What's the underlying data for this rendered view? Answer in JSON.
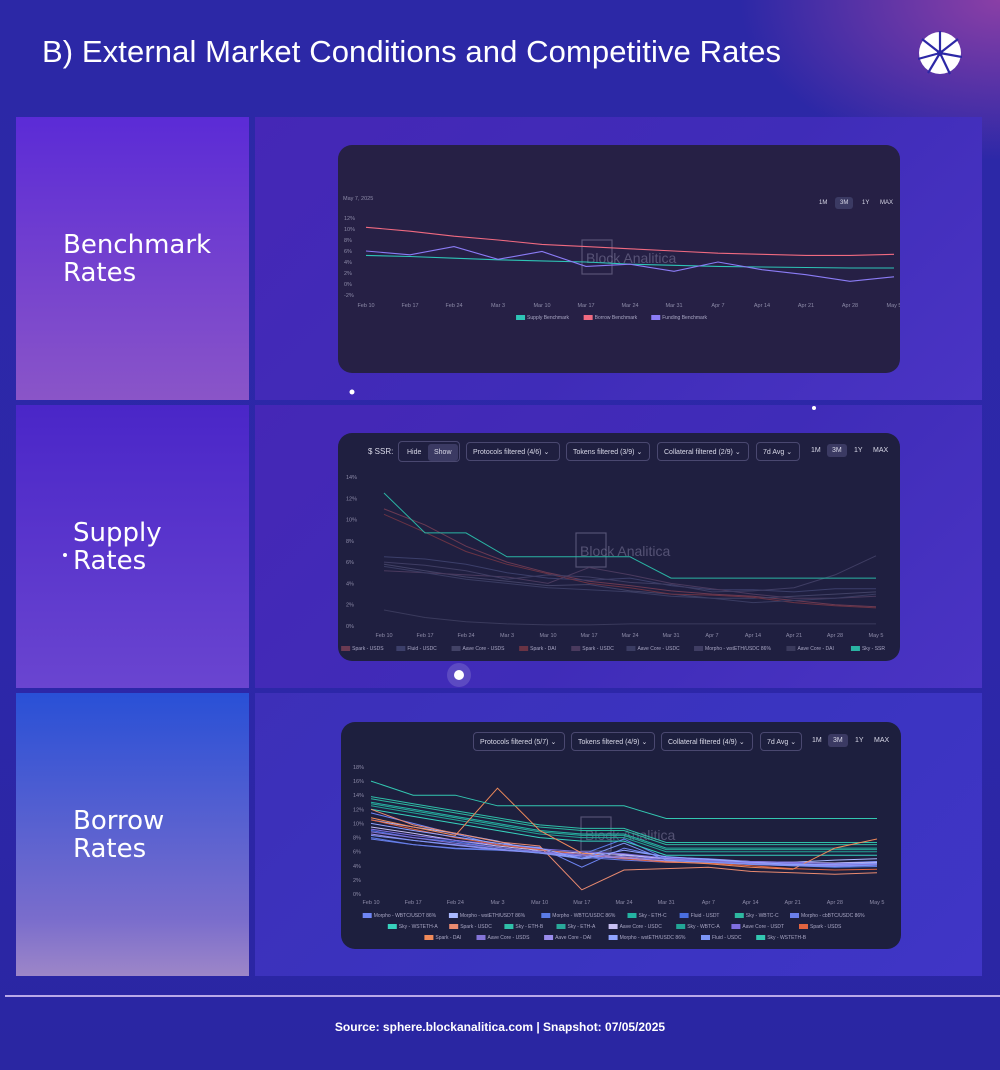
{
  "page": {
    "title": "B) External Market Conditions and Competitive Rates",
    "footer": "Source: sphere.blockanalitica.com | Snapshot: 07/05/2025",
    "watermark": "Block Analitica",
    "accent_colors": {
      "background": "#2c28a6",
      "card": "#262045"
    }
  },
  "sections": {
    "benchmark": {
      "label_line1": "Benchmark",
      "label_line2": "Rates"
    },
    "supply": {
      "label_line1": "Supply",
      "label_line2": "Rates"
    },
    "borrow": {
      "label_line1": "Borrow",
      "label_line2": "Rates"
    }
  },
  "controls": {
    "range_buttons": [
      "1M",
      "3M",
      "1Y",
      "MAX"
    ],
    "selected_range": "3M",
    "ssr_label": "$ SSR:",
    "hide": "Hide",
    "show": "Show",
    "supply_protocols": "Protocols filtered (4/6)",
    "supply_tokens": "Tokens filtered (3/9)",
    "supply_collateral": "Collateral filtered (2/9)",
    "supply_avg": "7d Avg",
    "borrow_protocols": "Protocols filtered (5/7)",
    "borrow_tokens": "Tokens filtered (4/9)",
    "borrow_collateral": "Collateral filtered (4/9)",
    "borrow_avg": "7d Avg"
  },
  "chart_data": [
    {
      "type": "line",
      "id": "benchmark",
      "date_label": "May 7, 2025",
      "x_ticks": [
        "Feb 10",
        "Feb 17",
        "Feb 24",
        "Mar 3",
        "Mar 10",
        "Mar 17",
        "Mar 24",
        "Mar 31",
        "Apr 7",
        "Apr 14",
        "Apr 21",
        "Apr 28",
        "May 5"
      ],
      "y_ticks": [
        "12%",
        "10%",
        "8%",
        "6%",
        "4%",
        "2%",
        "0%",
        "-2%"
      ],
      "ylim": [
        -2,
        12
      ],
      "series": [
        {
          "name": "Supply Benchmark",
          "color": "#2ec4b6",
          "values": [
            5.2,
            5.0,
            4.7,
            4.4,
            4.2,
            4.0,
            3.6,
            3.4,
            3.2,
            3.1,
            3.0,
            2.9,
            2.9
          ]
        },
        {
          "name": "Borrow Benchmark",
          "color": "#f06a80",
          "values": [
            10.3,
            9.6,
            8.7,
            8.0,
            7.2,
            6.8,
            6.4,
            6.0,
            5.6,
            5.4,
            5.2,
            5.2,
            5.4
          ]
        },
        {
          "name": "Funding Benchmark",
          "color": "#8b7cf6",
          "values": [
            6.0,
            5.3,
            6.8,
            4.5,
            5.9,
            3.2,
            3.6,
            2.3,
            4.0,
            2.6,
            1.7,
            0.5,
            1.3
          ]
        }
      ]
    },
    {
      "type": "line",
      "id": "supply",
      "x_ticks": [
        "Feb 10",
        "Feb 17",
        "Feb 24",
        "Mar 3",
        "Mar 10",
        "Mar 17",
        "Mar 24",
        "Mar 31",
        "Apr 7",
        "Apr 14",
        "Apr 21",
        "Apr 28",
        "May 5"
      ],
      "y_ticks": [
        "14%",
        "12%",
        "10%",
        "8%",
        "6%",
        "4%",
        "2%",
        "0%"
      ],
      "ylim": [
        0,
        14
      ],
      "series": [
        {
          "name": "Spark - USDS",
          "color": "#6b3a52",
          "values": [
            11.0,
            9.5,
            7.5,
            6.0,
            5.0,
            4.2,
            3.8,
            3.3,
            3.0,
            2.8,
            2.4,
            2.0,
            1.8
          ]
        },
        {
          "name": "Fluid - USDC",
          "color": "#3c3f6a",
          "values": [
            6.5,
            6.3,
            5.8,
            5.0,
            4.5,
            4.3,
            4.5,
            3.8,
            3.4,
            3.4,
            3.2,
            3.5,
            3.5
          ]
        },
        {
          "name": "Aave Core - USDS",
          "color": "#424266",
          "values": [
            5.8,
            5.2,
            4.6,
            4.2,
            3.8,
            3.9,
            3.3,
            3.0,
            2.6,
            2.6,
            2.8,
            3.0,
            3.2
          ]
        },
        {
          "name": "Spark - DAI",
          "color": "#6a3344",
          "values": [
            10.5,
            8.8,
            7.0,
            5.8,
            4.9,
            4.0,
            3.6,
            3.0,
            2.9,
            2.7,
            2.2,
            1.9,
            1.7
          ]
        },
        {
          "name": "Spark - USDC",
          "color": "#4a3a5e",
          "values": [
            5.2,
            5.0,
            4.8,
            4.6,
            4.0,
            5.5,
            4.8,
            4.0,
            3.5,
            3.0,
            2.6,
            2.6,
            2.8
          ]
        },
        {
          "name": "Aave Core - USDC",
          "color": "#3a3c62",
          "values": [
            5.6,
            5.0,
            4.4,
            4.0,
            3.6,
            3.4,
            3.2,
            2.8,
            2.6,
            2.2,
            2.4,
            2.6,
            3.0
          ]
        },
        {
          "name": "Morpho - wstETH/USDC 86%",
          "color": "#3f3d63",
          "values": [
            6.0,
            5.7,
            5.2,
            4.4,
            4.8,
            4.6,
            4.1,
            3.9,
            3.2,
            3.3,
            3.6,
            4.8,
            6.6
          ]
        },
        {
          "name": "Aave Core - DAI",
          "color": "#3a3a5c",
          "values": [
            1.5,
            0.8,
            0.4,
            0.2,
            0.1,
            0.1,
            0.2,
            0.2,
            0.2,
            0.2,
            0.2,
            0.2,
            0.2
          ]
        },
        {
          "name": "Sky - SSR",
          "color": "#2ab3a3",
          "values": [
            12.5,
            8.75,
            8.75,
            6.5,
            6.5,
            6.5,
            6.5,
            4.5,
            4.5,
            4.5,
            4.5,
            4.5,
            4.5
          ]
        }
      ]
    },
    {
      "type": "line",
      "id": "borrow",
      "x_ticks": [
        "Feb 10",
        "Feb 17",
        "Feb 24",
        "Mar 3",
        "Mar 10",
        "Mar 17",
        "Mar 24",
        "Mar 31",
        "Apr 7",
        "Apr 14",
        "Apr 21",
        "Apr 28",
        "May 5"
      ],
      "y_ticks": [
        "18%",
        "16%",
        "14%",
        "12%",
        "10%",
        "8%",
        "6%",
        "4%",
        "2%",
        "0%"
      ],
      "ylim": [
        0,
        18
      ],
      "series": [
        {
          "name": "Morpho - WBTC/USDT 86%",
          "color": "#6f86f5",
          "values": [
            11.5,
            10.0,
            8.5,
            7.0,
            6.6,
            3.8,
            6.5,
            5.2,
            5.0,
            4.6,
            4.4,
            4.4,
            4.6
          ]
        },
        {
          "name": "Morpho - wstETH/USDT 86%",
          "color": "#a9b8ff",
          "values": [
            10.5,
            9.5,
            8.6,
            7.5,
            6.0,
            5.0,
            5.5,
            5.0,
            4.8,
            4.5,
            4.5,
            4.8,
            5.0
          ]
        },
        {
          "name": "Morpho - WBTC/USDC 86%",
          "color": "#5b7ce6",
          "values": [
            8.0,
            7.0,
            6.4,
            6.2,
            5.9,
            5.6,
            7.8,
            5.0,
            4.5,
            4.2,
            4.0,
            3.8,
            3.9
          ]
        },
        {
          "name": "Sky - ETH-C",
          "color": "#24b3a2",
          "values": [
            13.0,
            12.0,
            11.0,
            10.0,
            9.0,
            8.5,
            8.5,
            6.5,
            6.5,
            6.5,
            6.5,
            6.5,
            6.5
          ]
        },
        {
          "name": "Fluid - USDT",
          "color": "#4a6fe0",
          "values": [
            9.0,
            8.0,
            7.4,
            6.6,
            6.0,
            5.4,
            5.0,
            5.0,
            4.6,
            4.4,
            4.2,
            4.0,
            4.2
          ]
        },
        {
          "name": "Sky - WBTC-C",
          "color": "#2eb8a0",
          "values": [
            13.5,
            12.5,
            11.5,
            10.5,
            9.5,
            9.0,
            9.0,
            7.0,
            7.0,
            7.0,
            7.0,
            7.0,
            7.0
          ]
        },
        {
          "name": "Morpho - cbBTC/USDC 86%",
          "color": "#6a7fea",
          "values": [
            7.8,
            7.0,
            6.5,
            6.3,
            6.0,
            5.2,
            4.8,
            4.5,
            4.4,
            4.3,
            4.2,
            4.2,
            4.3
          ]
        },
        {
          "name": "Sky - WSTETH-A",
          "color": "#37d1bd",
          "values": [
            12.0,
            11.0,
            10.0,
            9.0,
            8.0,
            7.5,
            7.5,
            5.5,
            5.5,
            5.5,
            5.5,
            5.5,
            5.5
          ]
        },
        {
          "name": "Spark - USDC",
          "color": "#e98a6f",
          "values": [
            12.0,
            9.8,
            8.6,
            7.4,
            6.8,
            0.6,
            3.4,
            3.6,
            3.8,
            3.2,
            3.0,
            2.8,
            3.0
          ]
        },
        {
          "name": "Sky - ETH-B",
          "color": "#2fbfa8",
          "values": [
            13.8,
            12.8,
            11.8,
            10.8,
            9.8,
            9.3,
            9.3,
            7.3,
            7.3,
            7.3,
            7.3,
            7.3,
            7.3
          ]
        },
        {
          "name": "Sky - ETH-A",
          "color": "#29a99a",
          "values": [
            12.8,
            11.8,
            10.8,
            9.8,
            8.8,
            8.3,
            8.3,
            6.3,
            6.3,
            6.3,
            6.3,
            6.3,
            6.3
          ]
        },
        {
          "name": "Aave Core - USDC",
          "color": "#c7bff2",
          "values": [
            9.5,
            8.6,
            7.6,
            6.8,
            6.2,
            5.8,
            5.6,
            5.0,
            4.9,
            4.6,
            4.5,
            4.4,
            4.5
          ]
        },
        {
          "name": "Sky - WBTC-A",
          "color": "#22a596",
          "values": [
            12.5,
            11.5,
            10.5,
            9.5,
            8.5,
            8.0,
            8.0,
            6.0,
            6.0,
            6.0,
            6.0,
            6.0,
            6.0
          ]
        },
        {
          "name": "Aave Core - USDT",
          "color": "#7f6fe0",
          "values": [
            9.2,
            8.3,
            7.6,
            7.0,
            6.4,
            6.0,
            5.7,
            5.1,
            4.8,
            4.6,
            4.5,
            4.3,
            4.4
          ]
        },
        {
          "name": "Spark - USDS",
          "color": "#e0633f",
          "values": [
            10.5,
            9.2,
            8.0,
            7.0,
            6.3,
            5.6,
            5.0,
            4.5,
            4.4,
            4.0,
            3.6,
            3.4,
            3.5
          ]
        },
        {
          "name": "Spark - DAI",
          "color": "#f08a5a",
          "values": [
            10.8,
            9.5,
            8.3,
            15.0,
            9.0,
            5.8,
            5.2,
            4.6,
            4.3,
            3.8,
            3.5,
            6.5,
            7.8
          ]
        },
        {
          "name": "Aave Core - USDS",
          "color": "#8474d8",
          "values": [
            8.8,
            8.0,
            7.2,
            6.6,
            6.0,
            5.6,
            5.3,
            4.9,
            4.7,
            4.4,
            4.3,
            4.1,
            4.2
          ]
        },
        {
          "name": "Aave Core - DAI",
          "color": "#9a8cec",
          "values": [
            8.5,
            7.6,
            6.9,
            6.3,
            5.8,
            5.4,
            5.1,
            4.7,
            4.5,
            4.3,
            4.1,
            4.0,
            4.1
          ]
        },
        {
          "name": "Morpho - wstETH/USDC 86%",
          "color": "#8fa3ff",
          "values": [
            10.0,
            9.0,
            8.1,
            7.2,
            6.5,
            5.0,
            6.2,
            5.3,
            4.9,
            4.5,
            4.2,
            4.2,
            4.4
          ]
        },
        {
          "name": "Fluid - USDC",
          "color": "#7c95f5",
          "values": [
            8.3,
            7.6,
            7.0,
            6.4,
            5.8,
            5.0,
            7.2,
            4.8,
            4.5,
            4.2,
            4.0,
            3.9,
            4.1
          ]
        },
        {
          "name": "Sky - WSTETH-B",
          "color": "#33c7b1",
          "values": [
            16.0,
            14.0,
            14.0,
            12.5,
            12.5,
            12.5,
            12.5,
            10.7,
            10.7,
            10.7,
            10.7,
            10.7,
            10.7
          ]
        }
      ]
    }
  ]
}
